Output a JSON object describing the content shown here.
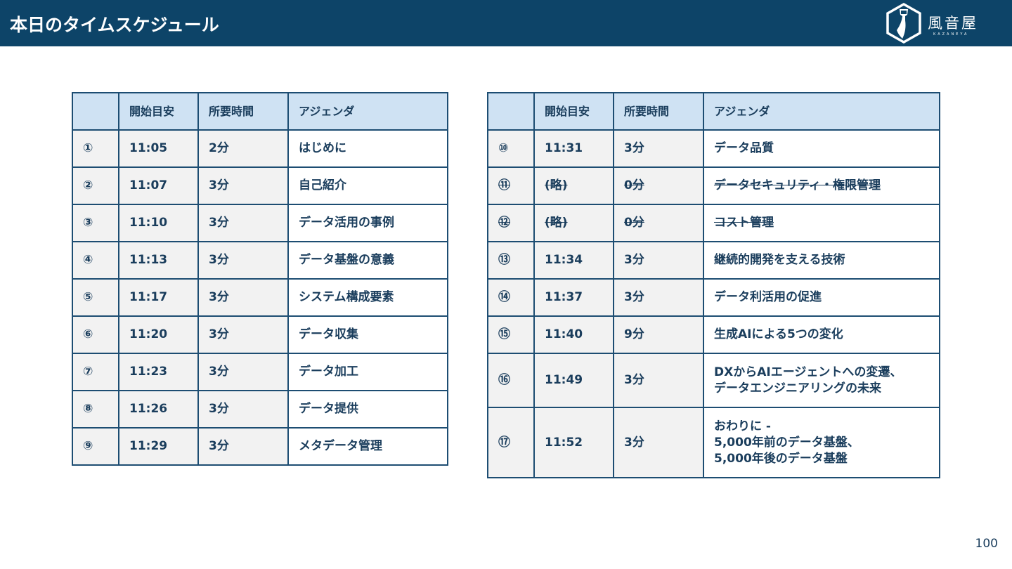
{
  "header": {
    "title": "本日のタイムスケジュール",
    "logo_text": "風音屋",
    "logo_sub": "KAZANEYA"
  },
  "columns": [
    "",
    "開始目安",
    "所要時間",
    "アジェンダ"
  ],
  "left_rows": [
    {
      "no": "①",
      "start": "11:05",
      "dur": "2分",
      "agenda": "はじめに"
    },
    {
      "no": "②",
      "start": "11:07",
      "dur": "3分",
      "agenda": "自己紹介"
    },
    {
      "no": "③",
      "start": "11:10",
      "dur": "3分",
      "agenda": "データ活用の事例"
    },
    {
      "no": "④",
      "start": "11:13",
      "dur": "3分",
      "agenda": "データ基盤の意義"
    },
    {
      "no": "⑤",
      "start": "11:17",
      "dur": "3分",
      "agenda": "システム構成要素"
    },
    {
      "no": "⑥",
      "start": "11:20",
      "dur": "3分",
      "agenda": "データ収集"
    },
    {
      "no": "⑦",
      "start": "11:23",
      "dur": "3分",
      "agenda": "データ加工"
    },
    {
      "no": "⑧",
      "start": "11:26",
      "dur": "3分",
      "agenda": "データ提供"
    },
    {
      "no": "⑨",
      "start": "11:29",
      "dur": "3分",
      "agenda": "メタデータ管理"
    }
  ],
  "right_rows": [
    {
      "no": "⑩",
      "start": "11:31",
      "dur": "3分",
      "agenda": "データ品質"
    },
    {
      "no": "⑪",
      "start": "(略)",
      "dur": "0分",
      "agenda": "データセキュリティ・権限管理",
      "struck": true
    },
    {
      "no": "⑫",
      "start": "(略)",
      "dur": "0分",
      "agenda": "コスト管理",
      "struck": true
    },
    {
      "no": "⑬",
      "start": "11:34",
      "dur": "3分",
      "agenda": "継続的開発を支える技術"
    },
    {
      "no": "⑭",
      "start": "11:37",
      "dur": "3分",
      "agenda": "データ利活用の促進"
    },
    {
      "no": "⑮",
      "start": "11:40",
      "dur": "9分",
      "agenda": "生成AIによる5つの変化"
    },
    {
      "no": "⑯",
      "start": "11:49",
      "dur": "3分",
      "agenda": "DXからAIエージェントへの変遷、\nデータエンジニアリングの未来"
    },
    {
      "no": "⑰",
      "start": "11:52",
      "dur": "3分",
      "agenda": "おわりに -\n5,000年前のデータ基盤、\n5,000年後のデータ基盤"
    }
  ],
  "page_number": "100"
}
